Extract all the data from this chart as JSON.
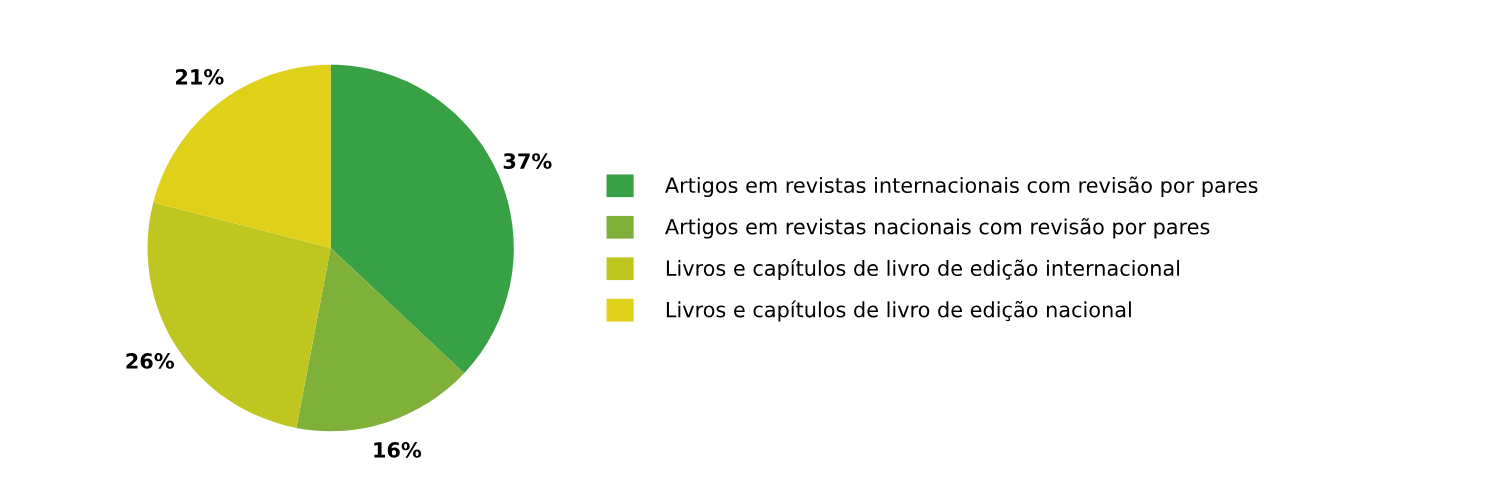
{
  "chart_data": {
    "type": "pie",
    "categories": [
      "Artigos em revistas internacionais com revisão por pares",
      "Artigos em revistas nacionais com revisão por pares",
      "Livros e capítulos de livro de edição internacional",
      "Livros e capítulos de livro de edição nacional"
    ],
    "values": [
      37,
      16,
      26,
      21
    ],
    "value_labels": [
      "37%",
      "16%",
      "26%",
      "21%"
    ],
    "colors": [
      "#38a146",
      "#7fb03a",
      "#c0c620",
      "#dfd01a"
    ],
    "legend": "right"
  }
}
